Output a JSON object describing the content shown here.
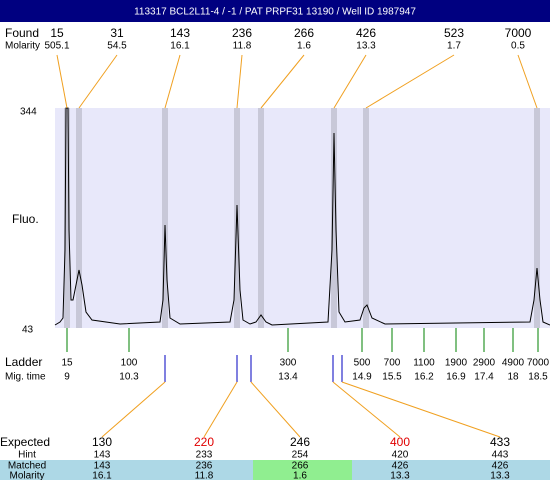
{
  "header": {
    "title": "113317  BCL2L11-4 / -1 / PAT PRPF31 13190 / Well ID 1987947"
  },
  "found": {
    "label": "Found",
    "molarity_label": "Molarity",
    "peaks": [
      {
        "size": 15,
        "molarity": 505.1
      },
      {
        "size": 31,
        "molarity": 54.5
      },
      {
        "size": 143,
        "molarity": 16.1
      },
      {
        "size": 236,
        "molarity": 11.8
      },
      {
        "size": 266,
        "molarity": 1.6
      },
      {
        "size": 426,
        "molarity": 13.3
      },
      {
        "size": 523,
        "molarity": 1.7
      },
      {
        "size": 7000,
        "molarity": 0.5
      }
    ]
  },
  "axis": {
    "label": "Fluo.",
    "top": 344,
    "bottom": 43
  },
  "ladder": {
    "label": "Ladder",
    "time_label": "Mig. time",
    "markers": [
      {
        "size": 15,
        "time": 9
      },
      {
        "size": 100,
        "time": 10.3
      },
      {
        "size": 300,
        "time": 13.4
      },
      {
        "size": 500,
        "time": 14.9
      },
      {
        "size": 700,
        "time": 15.5
      },
      {
        "size": 1100,
        "time": 16.2
      },
      {
        "size": 1900,
        "time": 16.9
      },
      {
        "size": 2900,
        "time": 17.4
      },
      {
        "size": 4900,
        "time": 18
      },
      {
        "size": 7000,
        "time": 18.5
      }
    ]
  },
  "expected": {
    "label": "Expected",
    "hint_label": "Hint",
    "matched_label": "Matched",
    "molarity_label": "Molarity",
    "rows": [
      {
        "expected": 130,
        "color": "#000000",
        "hint": 143,
        "matched": 143,
        "molarity": 16.1,
        "cell_color": "#add8e6"
      },
      {
        "expected": 220,
        "color": "#e00000",
        "hint": 233,
        "matched": 236,
        "molarity": 11.8,
        "cell_color": "#add8e6"
      },
      {
        "expected": 246,
        "color": "#000000",
        "hint": 254,
        "matched": 266,
        "molarity": 1.6,
        "cell_color": "#90ee90"
      },
      {
        "expected": 400,
        "color": "#e00000",
        "hint": 420,
        "matched": 426,
        "molarity": 13.3,
        "cell_color": "#add8e6"
      },
      {
        "expected": 433,
        "color": "#000000",
        "hint": 443,
        "matched": 426,
        "molarity": 13.3,
        "cell_color": "#add8e6"
      }
    ]
  }
}
